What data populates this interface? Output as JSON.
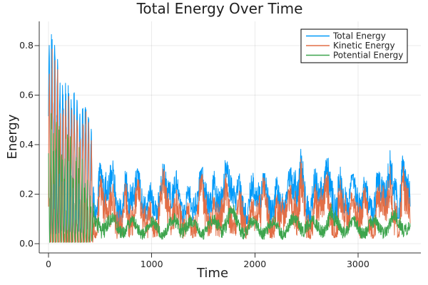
{
  "chart_data": {
    "type": "line",
    "title": "Total Energy Over Time",
    "xlabel": "Time",
    "ylabel": "Energy",
    "background": "#ffffff",
    "grid": true,
    "grid_color": "rgba(0,0,0,0.08)",
    "axis_color": "#333333",
    "text_color": "#1f1f1f",
    "xlim": [
      -90,
      3610
    ],
    "ylim": [
      -0.037,
      0.898
    ],
    "time_max": 3505,
    "xticks": [
      {
        "label": "0",
        "v": 0
      },
      {
        "label": "1000",
        "v": 1000
      },
      {
        "label": "2000",
        "v": 2000
      },
      {
        "label": "3000",
        "v": 3000
      }
    ],
    "yticks": [
      {
        "label": "0.0",
        "v": 0.0
      },
      {
        "label": "0.2",
        "v": 0.2
      },
      {
        "label": "0.4",
        "v": 0.4
      },
      {
        "label": "0.6",
        "v": 0.6
      },
      {
        "label": "0.8",
        "v": 0.8
      }
    ],
    "legend": {
      "position": "top-right",
      "border_color": "#000000",
      "background": "#ffffff"
    },
    "oscillation": {
      "early_period": 27,
      "early_until": 430,
      "description": "t<430: large decaying exchange oscillations between kinetic and potential; t>430: noisy fluctuating band"
    },
    "noise_seed": 20,
    "series": [
      {
        "name": "Total Energy",
        "color": "#009af9",
        "envelope": {
          "t": [
            0,
            25,
            60,
            100,
            140,
            180,
            220,
            260,
            300,
            350,
            415,
            460,
            520,
            570,
            640,
            705,
            810,
            912,
            1016,
            1085,
            1190,
            1290,
            1396,
            1500,
            1673,
            1811,
            1915,
            2000,
            2088,
            2191,
            2295,
            2360,
            2433,
            2537,
            2641,
            2744,
            2813,
            2917,
            3000,
            3090,
            3193,
            3297,
            3366,
            3435,
            3504
          ],
          "hi": [
            0.78,
            0.86,
            0.8,
            0.72,
            0.63,
            0.66,
            0.58,
            0.62,
            0.52,
            0.56,
            0.47,
            0.33,
            0.3,
            0.34,
            0.32,
            0.28,
            0.33,
            0.25,
            0.27,
            0.32,
            0.28,
            0.3,
            0.23,
            0.3,
            0.33,
            0.3,
            0.27,
            0.29,
            0.27,
            0.29,
            0.26,
            0.3,
            0.41,
            0.28,
            0.3,
            0.35,
            0.33,
            0.26,
            0.28,
            0.3,
            0.27,
            0.35,
            0.4,
            0.38,
            0.3
          ],
          "lo": [
            0.04,
            0.04,
            0.04,
            0.04,
            0.04,
            0.04,
            0.04,
            0.04,
            0.04,
            0.04,
            0.05,
            0.06,
            0.07,
            0.07,
            0.07,
            0.07,
            0.08,
            0.07,
            0.07,
            0.08,
            0.07,
            0.08,
            0.06,
            0.08,
            0.09,
            0.08,
            0.07,
            0.08,
            0.07,
            0.08,
            0.07,
            0.08,
            0.09,
            0.07,
            0.08,
            0.09,
            0.08,
            0.07,
            0.07,
            0.08,
            0.07,
            0.08,
            0.09,
            0.09,
            0.08
          ]
        }
      },
      {
        "name": "Kinetic Energy",
        "color": "#e26e46",
        "derivation": "kinetic = total - potential"
      },
      {
        "name": "Potential Energy",
        "color": "#3da44d",
        "envelope": {
          "t": [
            0,
            50,
            100,
            150,
            200,
            250,
            300,
            350,
            430,
            500,
            600,
            800,
            1000,
            1200,
            1300,
            1400,
            1600,
            1765,
            1900,
            2100,
            2300,
            2450,
            2600,
            2750,
            2900,
            3100,
            3300,
            3400,
            3504
          ],
          "hi": [
            0.5,
            0.55,
            0.48,
            0.42,
            0.45,
            0.38,
            0.4,
            0.3,
            0.18,
            0.16,
            0.13,
            0.12,
            0.11,
            0.12,
            0.16,
            0.11,
            0.12,
            0.19,
            0.11,
            0.12,
            0.11,
            0.15,
            0.11,
            0.17,
            0.11,
            0.12,
            0.13,
            0.16,
            0.12
          ],
          "lo": [
            0.0,
            0.0,
            0.0,
            0.0,
            0.0,
            0.0,
            0.0,
            0.0,
            0.01,
            0.01,
            0.01,
            0.01,
            0.01,
            0.01,
            0.01,
            0.01,
            0.01,
            0.02,
            0.01,
            0.01,
            0.01,
            0.02,
            0.01,
            0.02,
            0.01,
            0.01,
            0.01,
            0.02,
            0.01
          ]
        }
      }
    ]
  }
}
